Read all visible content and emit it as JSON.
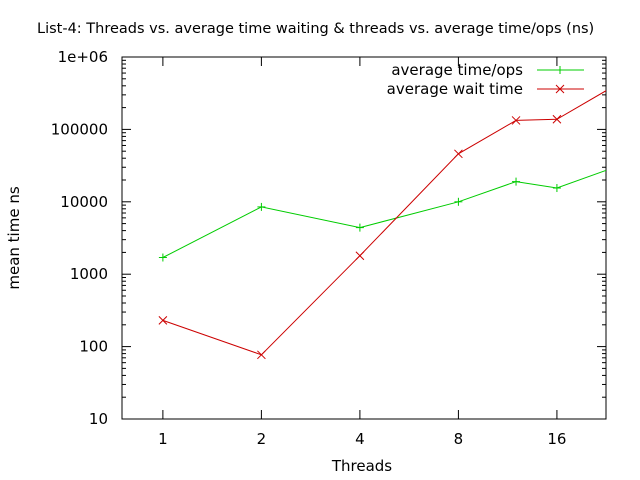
{
  "chart_data": {
    "type": "line",
    "title": "List-4: Threads vs. average time waiting & threads vs. average time/ops (ns)",
    "xlabel": "Threads",
    "ylabel": "mean time ns",
    "x_scale": "log2",
    "y_scale": "log10",
    "xlim": [
      0.75,
      22.6
    ],
    "ylim": [
      10,
      1000000
    ],
    "x_ticks": [
      1,
      2,
      4,
      8,
      16
    ],
    "x_tick_labels": [
      "1",
      "2",
      "4",
      "8",
      "16"
    ],
    "y_ticks": [
      10,
      100,
      1000,
      10000,
      100000,
      1000000
    ],
    "y_tick_labels": [
      "10",
      "100",
      "1000",
      "10000",
      "100000",
      "1e+06"
    ],
    "grid": false,
    "legend": "top-right",
    "series": [
      {
        "name": "average time/ops",
        "color": "#00cc00",
        "marker": "plus",
        "x": [
          1,
          2,
          4,
          8,
          12,
          16,
          24
        ],
        "y": [
          1700,
          8500,
          4400,
          10000,
          19000,
          15500,
          30000
        ]
      },
      {
        "name": "average wait time",
        "color": "#cc0000",
        "marker": "cross",
        "x": [
          1,
          2,
          4,
          8,
          12,
          16,
          24
        ],
        "y": [
          230,
          77,
          1800,
          46000,
          133000,
          138000,
          400000
        ]
      }
    ]
  }
}
